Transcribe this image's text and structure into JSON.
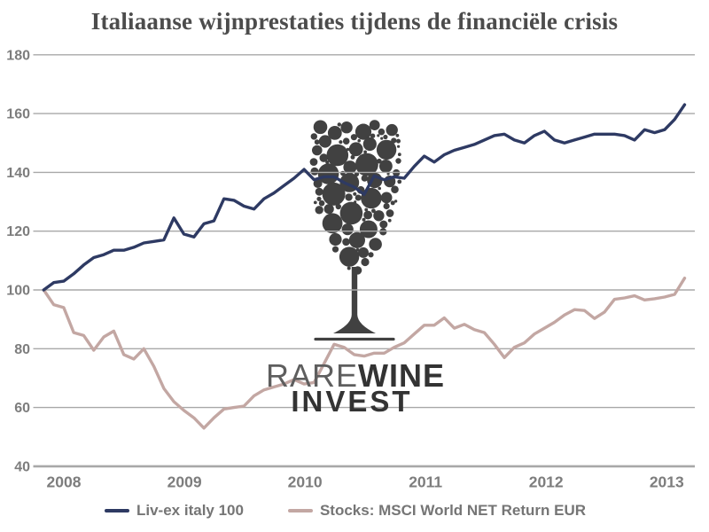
{
  "title": "Italiaanse wijnprestaties tijdens de financiële crisis",
  "watermark": {
    "icon": "wine-glass-bubbles-icon",
    "brand_light": "RARE",
    "brand_bold": "WINE",
    "brand_line2": "INVEST"
  },
  "colors": {
    "background": "#ffffff",
    "title_text": "#4c4c4c",
    "tick_text": "#7d7d7d",
    "gridline": "#a8a8a8",
    "watermark": "#3a3a3a",
    "wine_line": "#2e3a63",
    "stocks_line": "#c3a7a3"
  },
  "chart_data": {
    "type": "line",
    "title": "Italiaanse wijnprestaties tijdens de financiële crisis",
    "xlabel": "",
    "ylabel": "",
    "grid": "horizontal",
    "legend_position": "bottom",
    "y_ticks": [
      40,
      60,
      80,
      100,
      120,
      140,
      160,
      180
    ],
    "ylim": [
      40,
      185
    ],
    "x_tick_labels": [
      "2008",
      "2009",
      "2010",
      "2011",
      "2012",
      "2013"
    ],
    "x_unit": "monthly points from late 2007 to early 2013, index base 100",
    "series": [
      {
        "name": "Liv-ex italy 100",
        "color": "#2e3a63",
        "values": [
          100,
          102.5,
          103,
          105.5,
          108.5,
          111,
          112,
          113.5,
          113.5,
          114.5,
          116,
          116.5,
          117,
          124.5,
          119,
          118,
          122.5,
          123.5,
          131,
          130.5,
          128.5,
          127.5,
          131,
          133,
          135.5,
          138,
          141,
          137.5,
          138.5,
          138.5,
          136.5,
          135,
          132.5,
          138.8,
          137.5,
          138.5,
          138,
          142,
          145.5,
          143.5,
          146,
          147.5,
          148.5,
          149.5,
          151,
          152.5,
          153,
          151,
          150,
          152.5,
          154,
          151,
          150,
          151,
          152,
          153,
          153,
          153,
          152.5,
          151,
          154.5,
          153.5,
          154.5,
          158,
          163
        ]
      },
      {
        "name": "Stocks: MSCI World NET Return EUR",
        "color": "#c3a7a3",
        "values": [
          100,
          95,
          94,
          85.5,
          84.5,
          79.5,
          84,
          86,
          78,
          76.5,
          80,
          74,
          66.5,
          62,
          59,
          56.5,
          53,
          56.5,
          59.5,
          60,
          60.5,
          64,
          66,
          67,
          68,
          69.5,
          68,
          68.5,
          75,
          81.5,
          80.5,
          78,
          77.5,
          78.5,
          78.5,
          80.5,
          82,
          85,
          88,
          88,
          90.5,
          87,
          88.3,
          86.5,
          85.5,
          81.5,
          77,
          80.5,
          82,
          85,
          87,
          89,
          91.5,
          93.3,
          93,
          90.3,
          92.5,
          96.8,
          97.3,
          98,
          96.6,
          97,
          97.6,
          98.5,
          104
        ]
      }
    ]
  },
  "legend": {
    "item1": "Liv-ex italy 100",
    "item2": "Stocks: MSCI World NET Return EUR"
  }
}
